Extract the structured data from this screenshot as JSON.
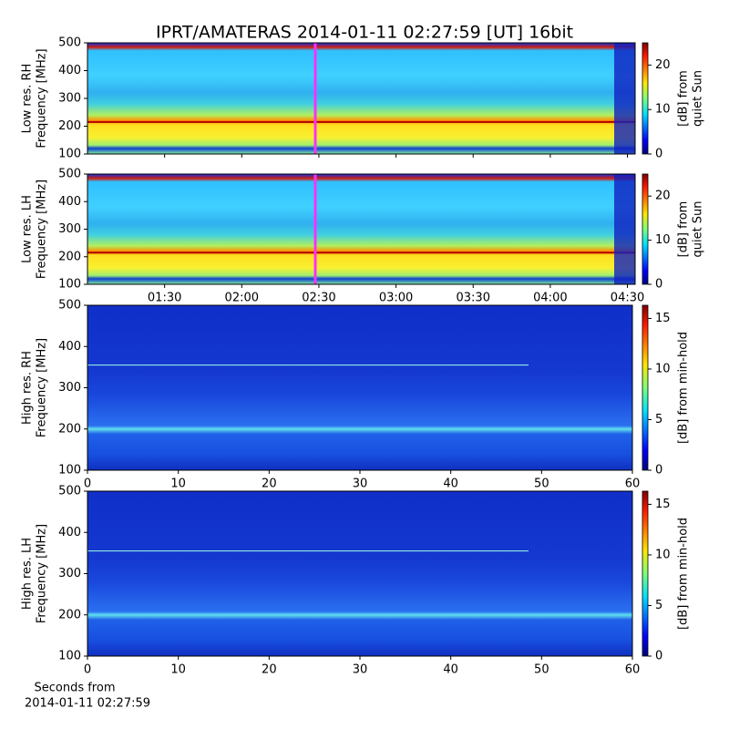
{
  "title": "IPRT/AMATERAS 2014-01-11 02:27:59 [UT]   16bit",
  "xlabel": [
    "Seconds from",
    "2014-01-11 02:27:59"
  ],
  "chart_data": [
    {
      "type": "heatmap",
      "ylabel": [
        "Low res. RH",
        "Frequency [MHz]"
      ],
      "ylim": [
        100,
        500
      ],
      "yticks": [
        100,
        200,
        300,
        400,
        500
      ],
      "xlim": [
        "01:00",
        "04:33"
      ],
      "colorbar_label": [
        "[dB] from",
        "quiet Sun"
      ],
      "clim": [
        0,
        25
      ],
      "cticks": [
        0,
        10,
        20
      ]
    },
    {
      "type": "heatmap",
      "ylabel": [
        "Low res. LH",
        "Frequency [MHz]"
      ],
      "ylim": [
        100,
        500
      ],
      "yticks": [
        100,
        200,
        300,
        400,
        500
      ],
      "xlim": [
        "01:00",
        "04:33"
      ],
      "xticks": [
        "01:30",
        "02:00",
        "02:30",
        "03:00",
        "03:30",
        "04:00",
        "04:30"
      ],
      "colorbar_label": [
        "[dB] from",
        "quiet Sun"
      ],
      "clim": [
        0,
        25
      ],
      "cticks": [
        0,
        10,
        20
      ]
    },
    {
      "type": "heatmap",
      "ylabel": [
        "High res. RH",
        "Frequency [MHz]"
      ],
      "ylim": [
        100,
        500
      ],
      "yticks": [
        100,
        200,
        300,
        400,
        500
      ],
      "xlim": [
        0,
        60
      ],
      "xticks": [
        0,
        10,
        20,
        30,
        40,
        50,
        60
      ],
      "colorbar_label": [
        "[dB] from min-hold"
      ],
      "clim": [
        0,
        16.3
      ],
      "cticks": [
        0,
        5,
        10,
        15
      ]
    },
    {
      "type": "heatmap",
      "ylabel": [
        "High res. LH",
        "Frequency [MHz]"
      ],
      "ylim": [
        100,
        500
      ],
      "yticks": [
        100,
        200,
        300,
        400,
        500
      ],
      "xlim": [
        0,
        60
      ],
      "xticks": [
        0,
        10,
        20,
        30,
        40,
        50,
        60
      ],
      "colorbar_label": [
        "[dB] from min-hold"
      ],
      "clim": [
        0,
        16.3
      ],
      "cticks": [
        0,
        5,
        10,
        15
      ]
    }
  ]
}
